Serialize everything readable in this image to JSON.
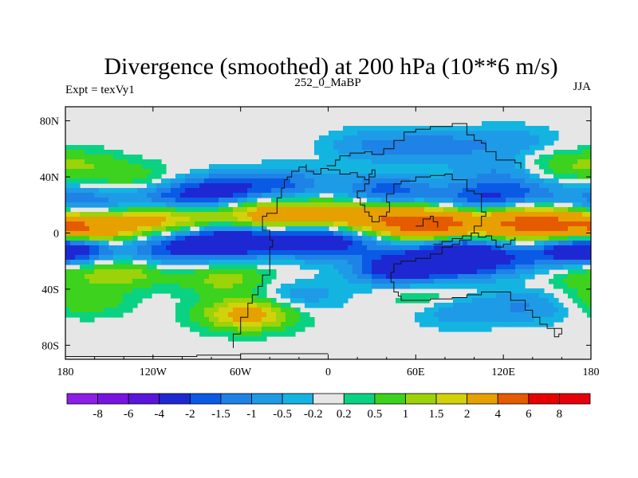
{
  "chart_data": {
    "type": "heatmap",
    "title": "Divergence (smoothed) at 200 hPa (10**6 m/s)",
    "left_label": "Expt = texVy1",
    "center_label": "252_0_MaBP",
    "right_label": "JJA",
    "x_ticks": [
      "180",
      "120W",
      "60W",
      "0",
      "60E",
      "120E",
      "180"
    ],
    "x_tick_values": [
      -180,
      -120,
      -60,
      0,
      60,
      120,
      180
    ],
    "y_ticks": [
      "80N",
      "40N",
      "0",
      "40S",
      "80S"
    ],
    "y_tick_values": [
      80,
      40,
      0,
      -40,
      -80
    ],
    "xlim": [
      -180,
      180
    ],
    "ylim": [
      -90,
      90
    ],
    "contour_levels": [
      -8,
      -6,
      -4,
      -2,
      -1.5,
      -1,
      -0.5,
      -0.2,
      0.2,
      0.5,
      1,
      1.5,
      2,
      4,
      6,
      8
    ],
    "colorbar_labels": [
      "-8",
      "-6",
      "-4",
      "-2",
      "-1.5",
      "-1",
      "-0.5",
      "-0.2",
      "0.2",
      "0.5",
      "1",
      "1.5",
      "2",
      "4",
      "6",
      "8"
    ],
    "colorbar_colors": [
      "#8c1ee6",
      "#7814e1",
      "#5a14dc",
      "#1e28d2",
      "#0a5ae6",
      "#1e82e6",
      "#1e9be6",
      "#14b4e1",
      "#e6e6e6",
      "#0ad282",
      "#3cd21e",
      "#9bd20a",
      "#d2d20a",
      "#e6a000",
      "#e65a00",
      "#e60000",
      "#e6000a"
    ],
    "blobs": [
      {
        "lon": -165,
        "lat": 3,
        "val": 3.0
      },
      {
        "lon": -125,
        "lat": 10,
        "val": 1.8
      },
      {
        "lon": -95,
        "lat": 10,
        "val": 1.2
      },
      {
        "lon": -40,
        "lat": 12,
        "val": 3.0
      },
      {
        "lon": 10,
        "lat": 12,
        "val": 2.5
      },
      {
        "lon": 55,
        "lat": 7,
        "val": 4.5
      },
      {
        "lon": 90,
        "lat": 5,
        "val": 3.0
      },
      {
        "lon": 140,
        "lat": 7,
        "val": 4.5
      },
      {
        "lon": -180,
        "lat": 3,
        "val": 2.0
      },
      {
        "lon": -170,
        "lat": 48,
        "val": 0.9
      },
      {
        "lon": -130,
        "lat": 38,
        "val": 0.8
      },
      {
        "lon": 150,
        "lat": 48,
        "val": 0.8
      },
      {
        "lon": -140,
        "lat": -27,
        "val": 1.5
      },
      {
        "lon": -70,
        "lat": -33,
        "val": 1.2
      },
      {
        "lon": -55,
        "lat": -58,
        "val": 2.5
      },
      {
        "lon": 70,
        "lat": -45,
        "val": 0.7
      },
      {
        "lon": -170,
        "lat": -48,
        "val": 1.0
      },
      {
        "lon": 170,
        "lat": -28,
        "val": 0.8
      },
      {
        "lon": -180,
        "lat": -10,
        "val": -2.5
      },
      {
        "lon": 180,
        "lat": -10,
        "val": -1.5
      },
      {
        "lon": -160,
        "lat": 20,
        "val": -1.2
      },
      {
        "lon": -110,
        "lat": 25,
        "val": -1.5
      },
      {
        "lon": -75,
        "lat": 30,
        "val": -2.2
      },
      {
        "lon": -30,
        "lat": 35,
        "val": -1.5
      },
      {
        "lon": -95,
        "lat": -8,
        "val": -1.8
      },
      {
        "lon": -60,
        "lat": -5,
        "val": -3.0
      },
      {
        "lon": -10,
        "lat": -5,
        "val": -3.0
      },
      {
        "lon": 30,
        "lat": -5,
        "val": -1.0
      },
      {
        "lon": 40,
        "lat": 30,
        "val": -1.8
      },
      {
        "lon": 100,
        "lat": 25,
        "val": -1.5
      },
      {
        "lon": 130,
        "lat": 28,
        "val": -1.2
      },
      {
        "lon": 90,
        "lat": -10,
        "val": -2.5
      },
      {
        "lon": 50,
        "lat": -25,
        "val": -3.0
      },
      {
        "lon": 95,
        "lat": -22,
        "val": -2.0
      },
      {
        "lon": 140,
        "lat": -18,
        "val": -1.2
      },
      {
        "lon": -120,
        "lat": -15,
        "val": -1.0
      },
      {
        "lon": 30,
        "lat": 62,
        "val": -1.0
      },
      {
        "lon": 75,
        "lat": 62,
        "val": -1.2
      },
      {
        "lon": 125,
        "lat": 65,
        "val": -0.8
      },
      {
        "lon": -20,
        "lat": -45,
        "val": -0.8
      },
      {
        "lon": 90,
        "lat": -55,
        "val": -1.0
      },
      {
        "lon": 140,
        "lat": -52,
        "val": -1.0
      },
      {
        "lon": 120,
        "lat": 45,
        "val": -1.0
      },
      {
        "lon": 175,
        "lat": 25,
        "val": -0.6
      }
    ],
    "continent_outline": [
      [
        [
          -65,
          -82
        ],
        [
          -65,
          -72
        ],
        [
          -60,
          -70
        ],
        [
          -60,
          -60
        ],
        [
          -55,
          -56
        ],
        [
          -55,
          -50
        ],
        [
          -52,
          -44
        ],
        [
          -48,
          -38
        ],
        [
          -45,
          -30
        ],
        [
          -40,
          -25
        ],
        [
          -40,
          -10
        ],
        [
          -38,
          -5
        ],
        [
          -40,
          2
        ],
        [
          -45,
          8
        ],
        [
          -45,
          12
        ],
        [
          -42,
          14
        ],
        [
          -35,
          18
        ],
        [
          -35,
          25
        ],
        [
          -32,
          32
        ],
        [
          -30,
          38
        ],
        [
          -28,
          40
        ],
        [
          -25,
          44
        ],
        [
          -20,
          47
        ],
        [
          -15,
          49
        ],
        [
          -15,
          44
        ],
        [
          -10,
          42
        ],
        [
          -5,
          46
        ],
        [
          0,
          45
        ],
        [
          5,
          45
        ],
        [
          8,
          42
        ],
        [
          12,
          42
        ],
        [
          15,
          43
        ],
        [
          20,
          40
        ],
        [
          25,
          38
        ],
        [
          28,
          42
        ],
        [
          30,
          45
        ],
        [
          32,
          40
        ],
        [
          28,
          35
        ],
        [
          25,
          30
        ],
        [
          20,
          25
        ],
        [
          22,
          20
        ],
        [
          25,
          18
        ],
        [
          25,
          15
        ],
        [
          28,
          12
        ],
        [
          30,
          8
        ],
        [
          35,
          12
        ],
        [
          40,
          15
        ],
        [
          42,
          22
        ],
        [
          40,
          28
        ],
        [
          45,
          35
        ],
        [
          50,
          37
        ],
        [
          60,
          40
        ],
        [
          70,
          41
        ],
        [
          80,
          42
        ],
        [
          85,
          38
        ],
        [
          90,
          38
        ],
        [
          95,
          30
        ],
        [
          100,
          28
        ],
        [
          105,
          22
        ],
        [
          105,
          15
        ],
        [
          108,
          12
        ],
        [
          105,
          5
        ],
        [
          100,
          0
        ],
        [
          98,
          -5
        ],
        [
          90,
          -8
        ],
        [
          85,
          -10
        ],
        [
          78,
          -15
        ],
        [
          70,
          -18
        ],
        [
          60,
          -20
        ],
        [
          50,
          -22
        ],
        [
          45,
          -28
        ],
        [
          43,
          -35
        ],
        [
          45,
          -42
        ],
        [
          48,
          -45
        ],
        [
          50,
          -48
        ],
        [
          60,
          -48
        ],
        [
          70,
          -47
        ],
        [
          85,
          -46
        ],
        [
          95,
          -44
        ],
        [
          105,
          -42
        ],
        [
          115,
          -42
        ],
        [
          125,
          -48
        ],
        [
          135,
          -55
        ],
        [
          140,
          -60
        ],
        [
          145,
          -65
        ],
        [
          150,
          -68
        ],
        [
          160,
          -68
        ],
        [
          160,
          -72
        ],
        [
          158,
          -74
        ],
        [
          155,
          -74
        ],
        [
          155,
          -68
        ]
      ],
      [
        [
          -1,
          48
        ],
        [
          5,
          52
        ],
        [
          8,
          55
        ],
        [
          15,
          57
        ],
        [
          25,
          58
        ],
        [
          30,
          56
        ],
        [
          38,
          60
        ],
        [
          45,
          66
        ],
        [
          52,
          72
        ],
        [
          60,
          74
        ],
        [
          70,
          76
        ],
        [
          80,
          76
        ],
        [
          85,
          78
        ],
        [
          92,
          78
        ],
        [
          95,
          70
        ],
        [
          100,
          66
        ],
        [
          105,
          64
        ],
        [
          108,
          58
        ],
        [
          115,
          52
        ],
        [
          120,
          52
        ],
        [
          128,
          50
        ],
        [
          132,
          46
        ]
      ],
      [
        [
          72,
          -8
        ],
        [
          78,
          -6
        ],
        [
          85,
          -4
        ],
        [
          92,
          -2
        ],
        [
          98,
          0
        ],
        [
          103,
          -3
        ],
        [
          108,
          -2
        ],
        [
          112,
          -5
        ],
        [
          115,
          -10
        ],
        [
          120,
          -8
        ],
        [
          125,
          -5
        ],
        [
          128,
          -3
        ]
      ],
      [
        [
          60,
          5
        ],
        [
          65,
          10
        ],
        [
          70,
          12
        ],
        [
          72,
          8
        ],
        [
          75,
          4
        ]
      ],
      [
        [
          -180,
          -88
        ],
        [
          -150,
          -88
        ],
        [
          -120,
          -88
        ],
        [
          -90,
          -87
        ],
        [
          -60,
          -86
        ],
        [
          -30,
          -86
        ],
        [
          0,
          -86
        ]
      ]
    ]
  }
}
